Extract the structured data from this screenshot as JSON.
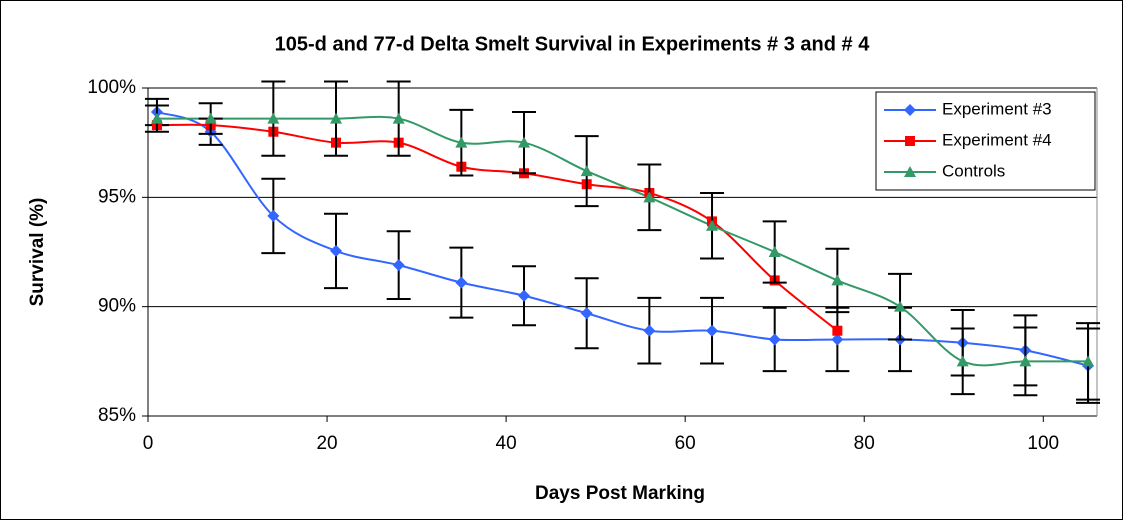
{
  "chart_data": {
    "type": "line",
    "title": "105-d and 77-d Delta Smelt Survival in Experiments # 3 and # 4",
    "x_label": "Days Post Marking",
    "y_label": "Survival (%)",
    "xlim": [
      0,
      106
    ],
    "xticks": [
      0,
      20,
      40,
      60,
      80,
      100
    ],
    "ylim": [
      85,
      100
    ],
    "yticks": [
      {
        "value": 85,
        "label": "85%"
      },
      {
        "value": 90,
        "label": "90%"
      },
      {
        "value": 95,
        "label": "95%"
      },
      {
        "value": 100,
        "label": "100%"
      }
    ],
    "grid": true,
    "legend": "top-right",
    "series": [
      {
        "name": "Experiment #3",
        "color": "#3366ff",
        "marker": "diamond",
        "x": [
          1,
          7,
          14,
          21,
          28,
          35,
          42,
          49,
          56,
          63,
          70,
          77,
          84,
          91,
          98,
          105
        ],
        "values": [
          98.9,
          98.0,
          94.15,
          92.55,
          91.9,
          91.1,
          90.5,
          89.7,
          88.9,
          88.9,
          88.5,
          88.5,
          88.5,
          88.35,
          88.0,
          87.3
        ],
        "errors": [
          0.6,
          0.6,
          1.7,
          1.7,
          1.55,
          1.6,
          1.35,
          1.6,
          1.5,
          1.5,
          1.45,
          1.45,
          1.45,
          1.5,
          1.6,
          1.7
        ]
      },
      {
        "name": "Experiment #4",
        "color": "#ff0000",
        "marker": "square",
        "x": [
          1,
          7,
          14,
          21,
          28,
          35,
          42,
          49,
          56,
          63,
          70,
          77
        ],
        "values": [
          98.3,
          98.3,
          98.0,
          97.5,
          97.5,
          96.4,
          96.1,
          95.6,
          95.2,
          93.9,
          91.2,
          88.9
        ]
      },
      {
        "name": "Controls",
        "color": "#339966",
        "marker": "triangle",
        "x": [
          1,
          7,
          14,
          21,
          28,
          35,
          42,
          49,
          56,
          63,
          70,
          77,
          84,
          91,
          98,
          105
        ],
        "values": [
          98.6,
          98.6,
          98.6,
          98.6,
          98.6,
          97.5,
          97.5,
          96.2,
          95.0,
          93.7,
          92.5,
          91.2,
          90.0,
          87.5,
          87.5,
          87.5
        ],
        "errors": [
          0.6,
          0.7,
          1.7,
          1.7,
          1.7,
          1.5,
          1.4,
          1.6,
          1.5,
          1.5,
          1.4,
          1.45,
          1.5,
          1.5,
          1.55,
          1.75
        ]
      }
    ]
  }
}
